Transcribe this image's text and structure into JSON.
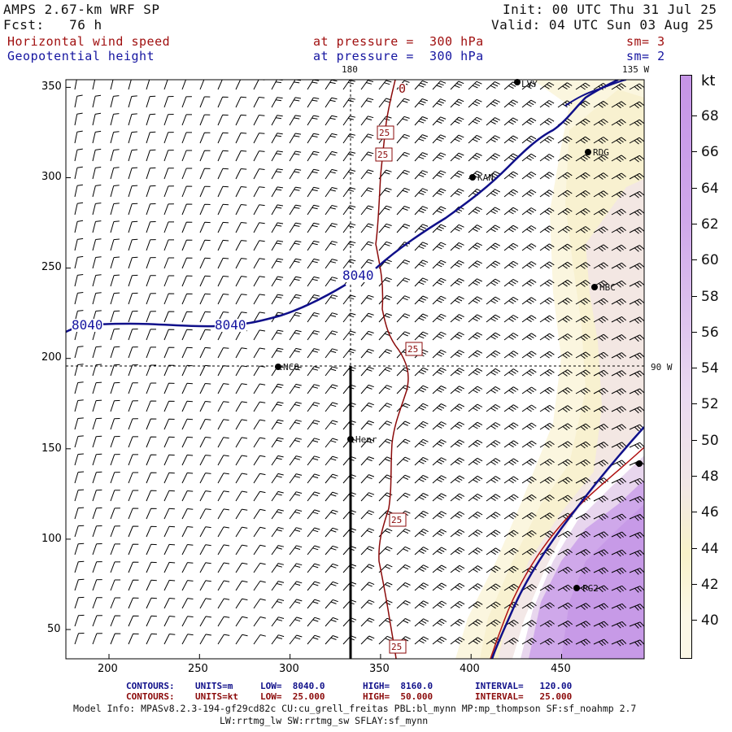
{
  "header": {
    "model": "AMPS 2.67-km WRF SP",
    "fcst": "Fcst:   76 h",
    "init": "Init: 00 UTC Thu 31 Jul 25",
    "valid": "Valid: 04 UTC Sun 03 Aug 25",
    "field1": "Horizontal wind speed",
    "field2": "Geopotential height",
    "level1": "at pressure =  300 hPa",
    "level2": "at pressure =  300 hPa",
    "sm1": "sm= 3",
    "sm2": "sm= 2"
  },
  "map_labels": {
    "meridian_180": "180",
    "meridian_135w": "135 W",
    "meridian_90w": "90 W"
  },
  "axes": {
    "x_ticks": [
      "200",
      "250",
      "300",
      "350",
      "400",
      "450"
    ],
    "y_ticks": [
      "350",
      "300",
      "250",
      "200",
      "150",
      "100",
      "50"
    ]
  },
  "stations": [
    {
      "name": "LVY"
    },
    {
      "name": "RDG"
    },
    {
      "name": "KAN"
    },
    {
      "name": "HBC"
    },
    {
      "name": "NCO"
    },
    {
      "name": "Henr"
    },
    {
      "name": "PG2"
    }
  ],
  "contour_labels": {
    "height": [
      "8040",
      "8040",
      "8040"
    ],
    "wind": [
      "25",
      "25",
      "25",
      "25",
      "25",
      "0"
    ]
  },
  "colorbar": {
    "unit": "kt",
    "ticks": [
      "68",
      "66",
      "64",
      "62",
      "60",
      "58",
      "56",
      "54",
      "52",
      "50",
      "48",
      "46",
      "44",
      "42",
      "40"
    ],
    "colors": {
      "c40": "#fbf7e6",
      "c44": "#f8f2c9",
      "c48": "#f1e6e6",
      "c52": "#ead9f0",
      "c56": "#dcc0ed",
      "c60": "#cfa8ea",
      "c68": "#c594e6"
    }
  },
  "footer": {
    "contours1_label": "CONTOURS:",
    "contours1_units": "UNITS=m",
    "contours1_low": "LOW=  8040.0",
    "contours1_high": "HIGH=  8160.0",
    "contours1_interval": "INTERVAL=   120.00",
    "contours2_label": "CONTOURS:",
    "contours2_units": "UNITS=kt",
    "contours2_low": "LOW=  25.000",
    "contours2_high": "HIGH=  50.000",
    "contours2_interval": "INTERVAL=   25.000",
    "model_info": "Model Info: MPASv8.2.3-194-gf29cd82c CU:cu_grell_freitas PBL:bl_mynn MP:mp_thompson SF:sf_noahmp 2.7",
    "model_info2": "LW:rrtmg_lw SW:rrtmg_sw SFLAY:sf_mynn"
  },
  "colors": {
    "wind_contour": "#8b0a0a",
    "height_contour": "#10108a",
    "barb": "#000000"
  }
}
